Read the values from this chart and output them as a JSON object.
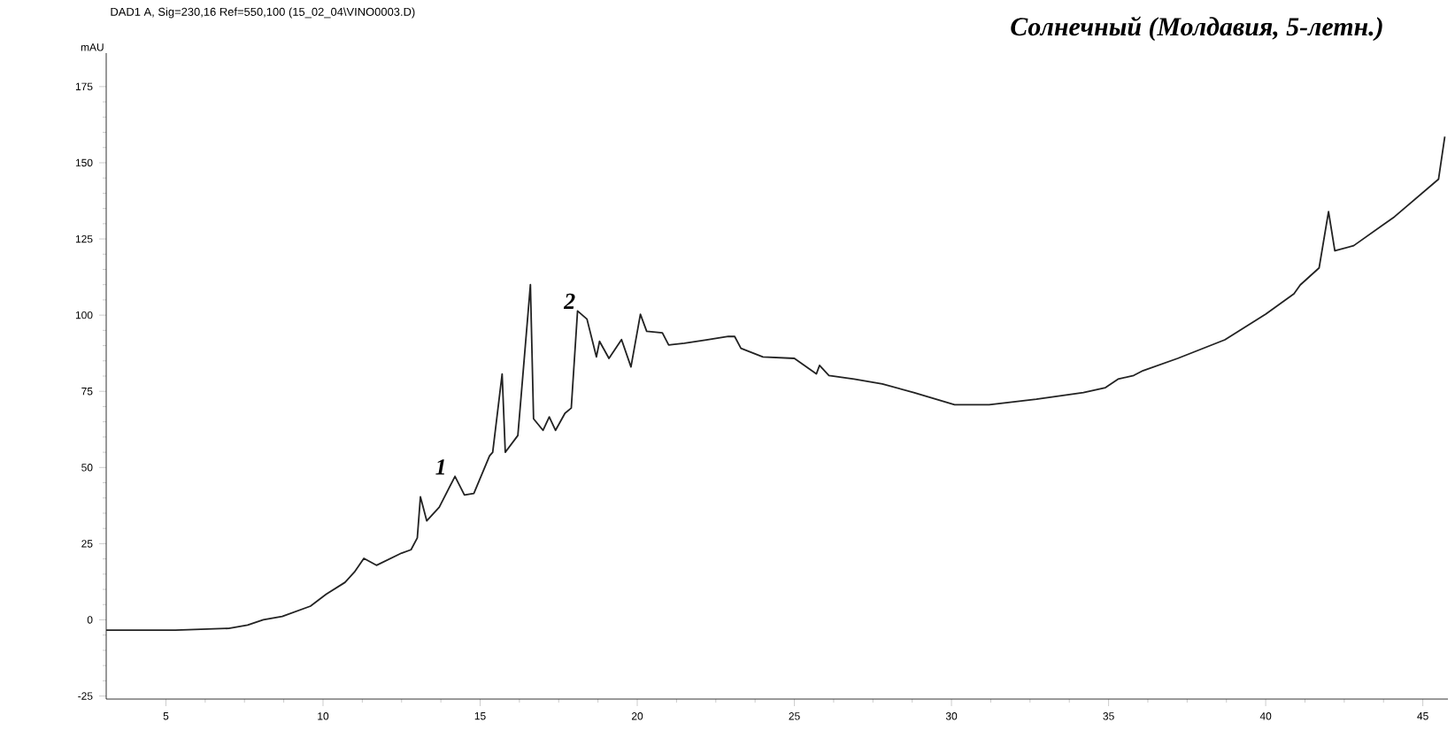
{
  "chart_data": {
    "type": "line",
    "title": "Солнечный (Молдавия, 5-летн.)",
    "ylabel": "mAU",
    "annotations": [
      "DAD1 A, Sig=230,16 Ref=550,100 (15_02_04\\VINO0003.D)",
      {
        "text": "1",
        "x": 14.0,
        "y": 47
      },
      {
        "text": "2",
        "x": 18.1,
        "y": 101.4
      }
    ],
    "xlim": [
      3.1,
      45.8
    ],
    "ylim": [
      -26,
      186
    ],
    "xticks": [
      5,
      10,
      15,
      20,
      25,
      30,
      35,
      40,
      45
    ],
    "yticks": [
      -25,
      0,
      25,
      50,
      75,
      100,
      125,
      150,
      175
    ],
    "grid": false,
    "marker": "none",
    "line_style": "solid",
    "series": [
      {
        "color": "#222222",
        "x": [
          3.1,
          5.3,
          7.0,
          7.6,
          8.1,
          8.7,
          9.6,
          10.1,
          10.7,
          11.0,
          11.3,
          11.7,
          12.5,
          12.8,
          13.0,
          13.1,
          13.3,
          13.7,
          14.2,
          14.5,
          14.8,
          15.3,
          15.4,
          15.7,
          15.8,
          16.2,
          16.6,
          16.7,
          17.0,
          17.2,
          17.4,
          17.7,
          17.9,
          18.1,
          18.4,
          18.7,
          18.8,
          19.1,
          19.5,
          19.8,
          20.1,
          20.3,
          20.8,
          21.0,
          21.5,
          22.2,
          22.9,
          23.1,
          23.3,
          24.0,
          25.0,
          25.7,
          25.8,
          26.1,
          26.9,
          27.8,
          28.8,
          30.1,
          31.2,
          32.7,
          34.2,
          34.9,
          35.3,
          35.8,
          36.1,
          37.2,
          38.7,
          40.0,
          40.9,
          41.1,
          41.7,
          42.0,
          42.2,
          42.8,
          44.1,
          45.5,
          45.7
        ],
        "values": [
          -3.4,
          -3.4,
          -2.8,
          -1.7,
          0,
          1.1,
          4.5,
          8.4,
          12.3,
          15.7,
          20.2,
          17.9,
          21.9,
          23.0,
          26.9,
          40.4,
          32.5,
          37.0,
          47.1,
          41.0,
          41.5,
          53.8,
          55.0,
          80.7,
          55.0,
          60.5,
          110.0,
          66.0,
          62.2,
          66.6,
          62.2,
          67.8,
          69.5,
          101.4,
          98.7,
          86.3,
          91.4,
          85.8,
          92.0,
          83.0,
          100.3,
          94.7,
          94.2,
          90.2,
          90.8,
          91.9,
          93.0,
          93.0,
          89.1,
          86.3,
          85.8,
          80.7,
          83.5,
          80.2,
          79.0,
          77.4,
          74.6,
          70.6,
          70.6,
          72.4,
          74.6,
          76.2,
          79.0,
          80.2,
          81.8,
          85.8,
          91.9,
          100.3,
          107.0,
          109.9,
          115.5,
          134.0,
          121.1,
          122.8,
          132.3,
          144.6,
          158.6
        ]
      }
    ]
  }
}
